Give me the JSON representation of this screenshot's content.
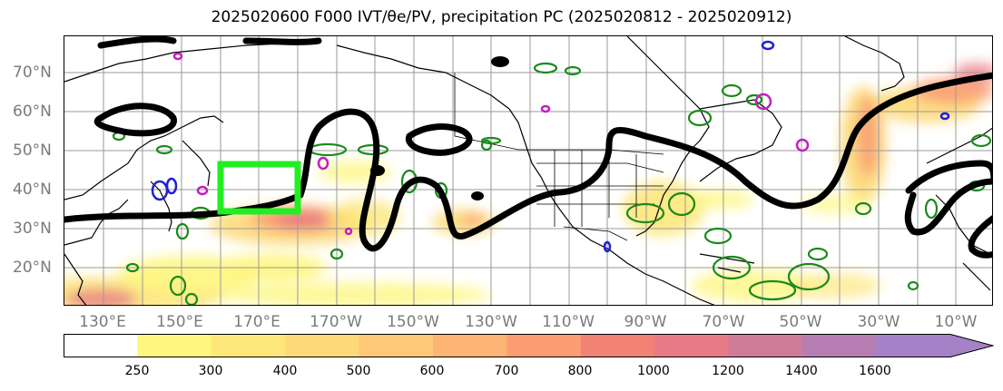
{
  "title": "2025020600 F000 IVT/θe/PV, precipitation PC (2025020812 - 2025020912)",
  "map": {
    "lon_labels": [
      "130°E",
      "150°E",
      "170°E",
      "170°W",
      "150°W",
      "130°W",
      "110°W",
      "90°W",
      "70°W",
      "50°W",
      "30°W",
      "10°W"
    ],
    "lat_labels": [
      "70°N",
      "60°N",
      "50°N",
      "40°N",
      "30°N",
      "20°N"
    ],
    "highlight_box_color": "#22ee22",
    "pv_contour_color": "#000000",
    "precip_contour_color": "#1a8a1a",
    "other_contour_colors": [
      "#1f1fd6",
      "#c020c0"
    ]
  },
  "colorbar": {
    "labels": [
      "250",
      "300",
      "400",
      "500",
      "600",
      "700",
      "800",
      "1000",
      "1200",
      "1400",
      "1600"
    ],
    "colors": [
      "#ffffff",
      "#fef67f",
      "#fde77a",
      "#fdd978",
      "#fdc877",
      "#fdb475",
      "#fb9d73",
      "#f28274",
      "#e77a84",
      "#cf7c99",
      "#b77eb4",
      "#a681c8"
    ]
  }
}
